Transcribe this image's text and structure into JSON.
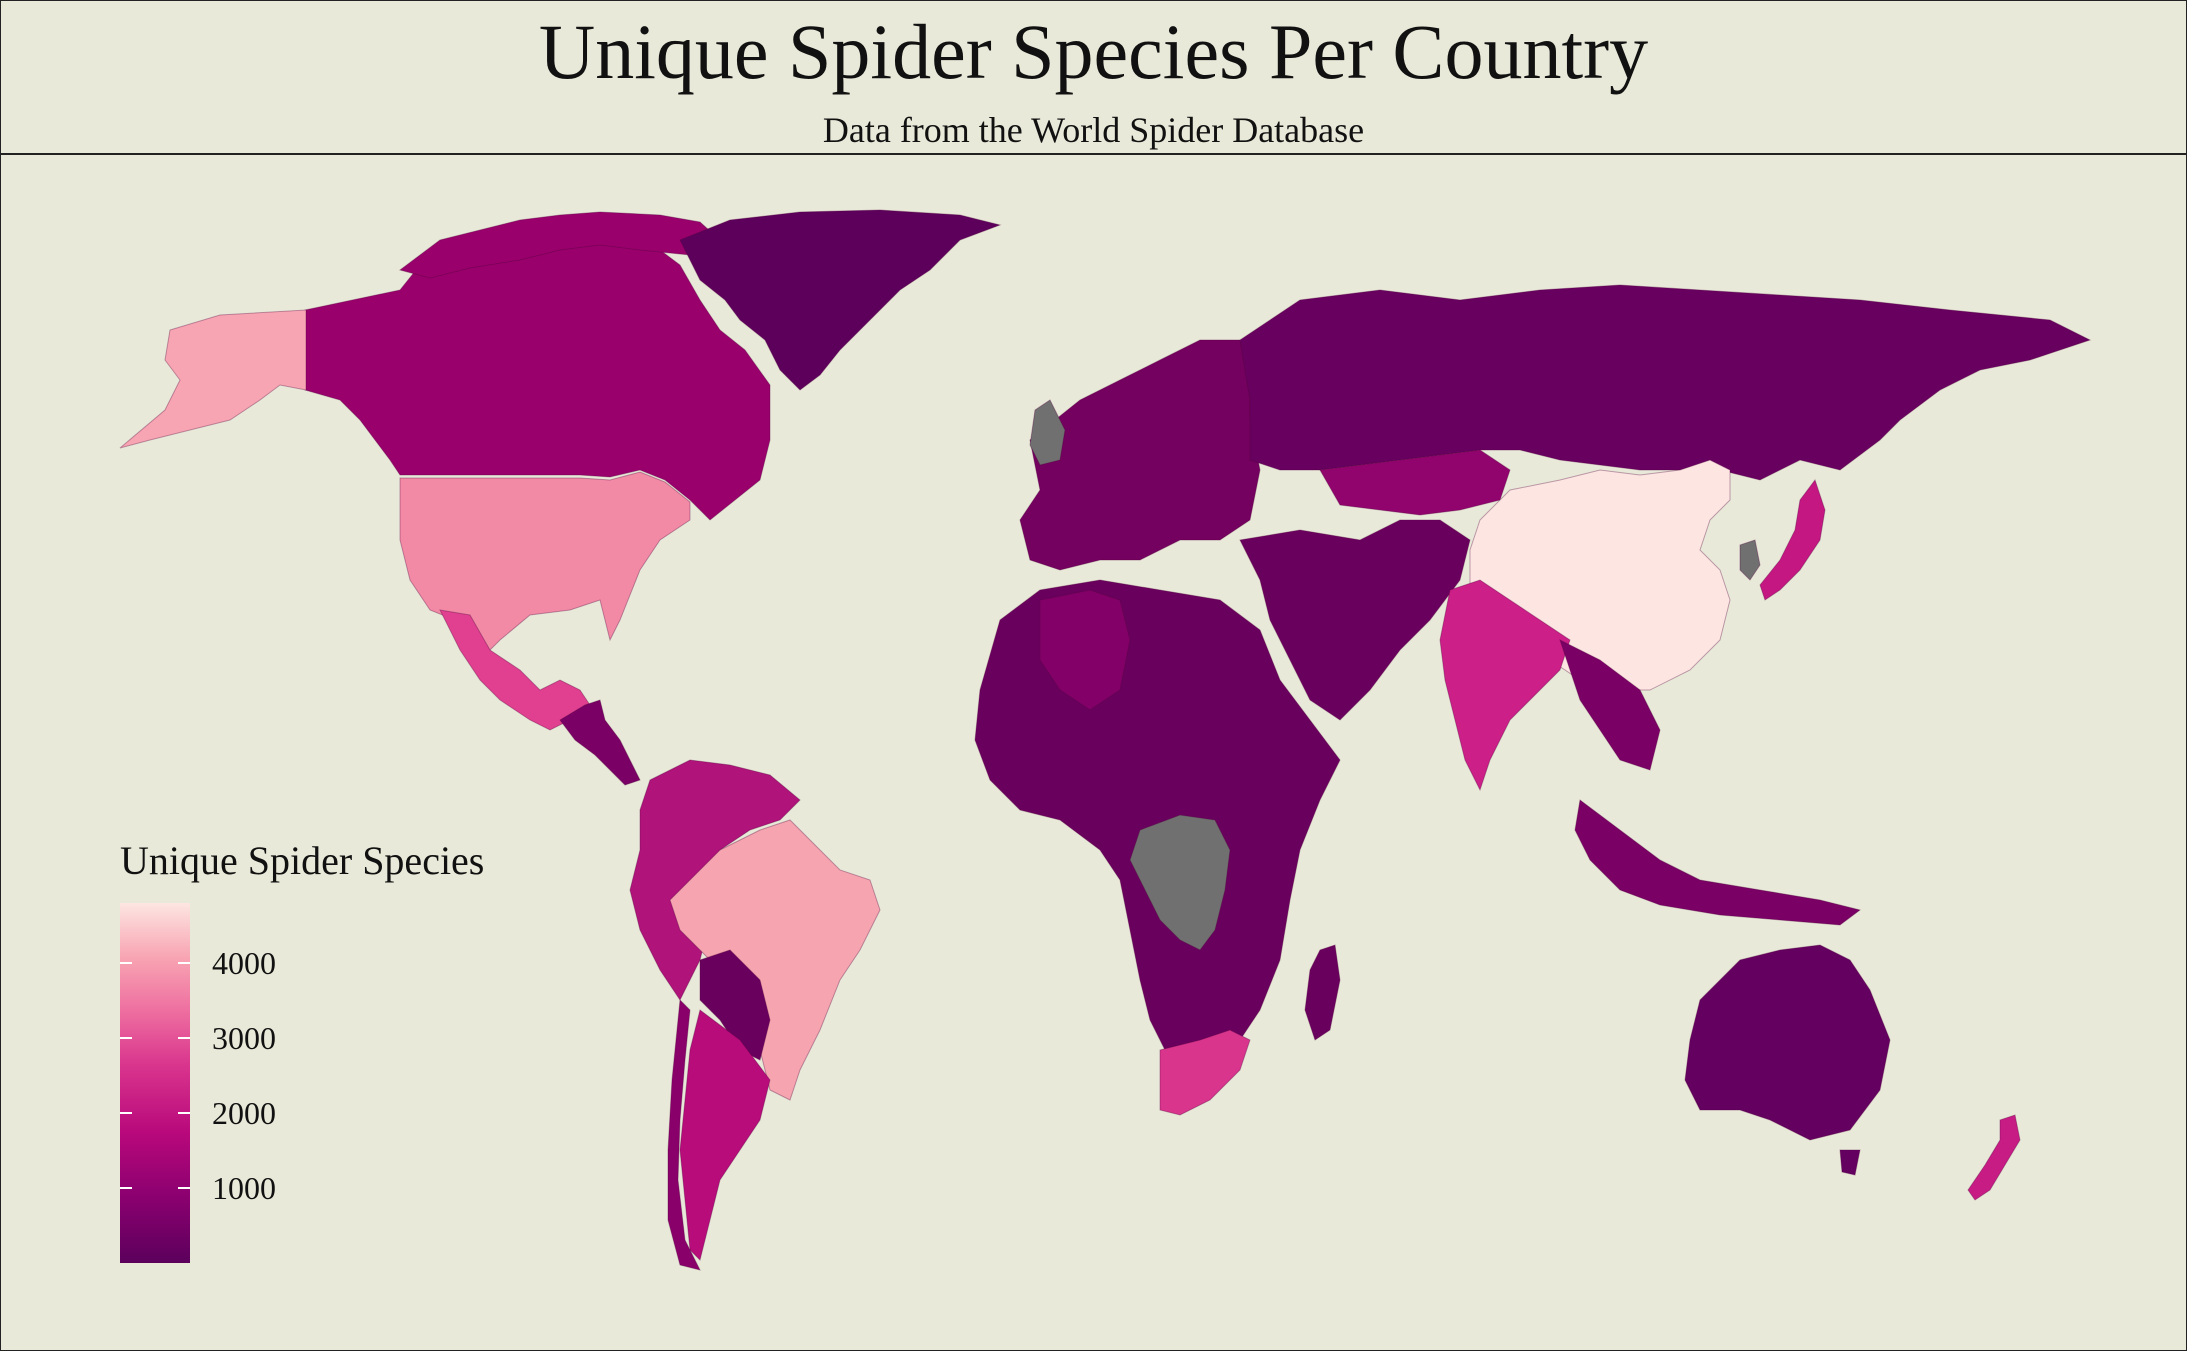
{
  "header": {
    "title": "Unique Spider Species Per Country",
    "subtitle": "Data from the World Spider Database"
  },
  "legend": {
    "title": "Unique Spider Species",
    "ticks": [
      "4000",
      "3000",
      "2000",
      "1000"
    ],
    "scale_min": 0,
    "scale_max": 4800,
    "colors": {
      "low": "#5c005c",
      "mid": "#b8087b",
      "high": "#fde6e2",
      "missing": "#707070"
    }
  },
  "map": {
    "background": "#e9e9d9",
    "countries": [
      {
        "name": "Canada",
        "value": 1200,
        "color": "#9a006c"
      },
      {
        "name": "Alaska",
        "value": 3900,
        "color": "#f8a5b3"
      },
      {
        "name": "United States",
        "value": 3700,
        "color": "#f28aa6"
      },
      {
        "name": "Mexico",
        "value": 2600,
        "color": "#e0408f"
      },
      {
        "name": "Central America",
        "value": 800,
        "color": "#7a0065"
      },
      {
        "name": "Greenland",
        "value": 300,
        "color": "#5c005c"
      },
      {
        "name": "Colombia / Venezuela / Peru",
        "value": 1600,
        "color": "#b0137a"
      },
      {
        "name": "Brazil",
        "value": 3800,
        "color": "#f6a5b0"
      },
      {
        "name": "Bolivia / Paraguay",
        "value": 500,
        "color": "#6a005e"
      },
      {
        "name": "Argentina",
        "value": 1700,
        "color": "#b80c7b"
      },
      {
        "name": "Chile",
        "value": 1000,
        "color": "#8a006b"
      },
      {
        "name": "Russia",
        "value": 600,
        "color": "#680060"
      },
      {
        "name": "Kazakhstan",
        "value": 1100,
        "color": "#92046d"
      },
      {
        "name": "China",
        "value": 4800,
        "color": "#fde6e2"
      },
      {
        "name": "India",
        "value": 2000,
        "color": "#cc1f88"
      },
      {
        "name": "Japan",
        "value": 1800,
        "color": "#c41782"
      },
      {
        "name": "Africa (most)",
        "value": 500,
        "color": "#6a005e"
      },
      {
        "name": "Algeria",
        "value": 900,
        "color": "#820068"
      },
      {
        "name": "South Africa",
        "value": 2200,
        "color": "#d9358d"
      },
      {
        "name": "Australia",
        "value": 400,
        "color": "#640060"
      },
      {
        "name": "New Zealand",
        "value": 1900,
        "color": "#c81c85"
      },
      {
        "name": "Europe",
        "value": 700,
        "color": "#74005f"
      },
      {
        "name": "Indonesia / SE Asia",
        "value": 800,
        "color": "#7a0065"
      },
      {
        "name": "Dem. Rep. Congo",
        "value": null,
        "color": "#707070"
      },
      {
        "name": "United Kingdom",
        "value": null,
        "color": "#707070"
      },
      {
        "name": "South Korea",
        "value": null,
        "color": "#707070"
      }
    ]
  }
}
